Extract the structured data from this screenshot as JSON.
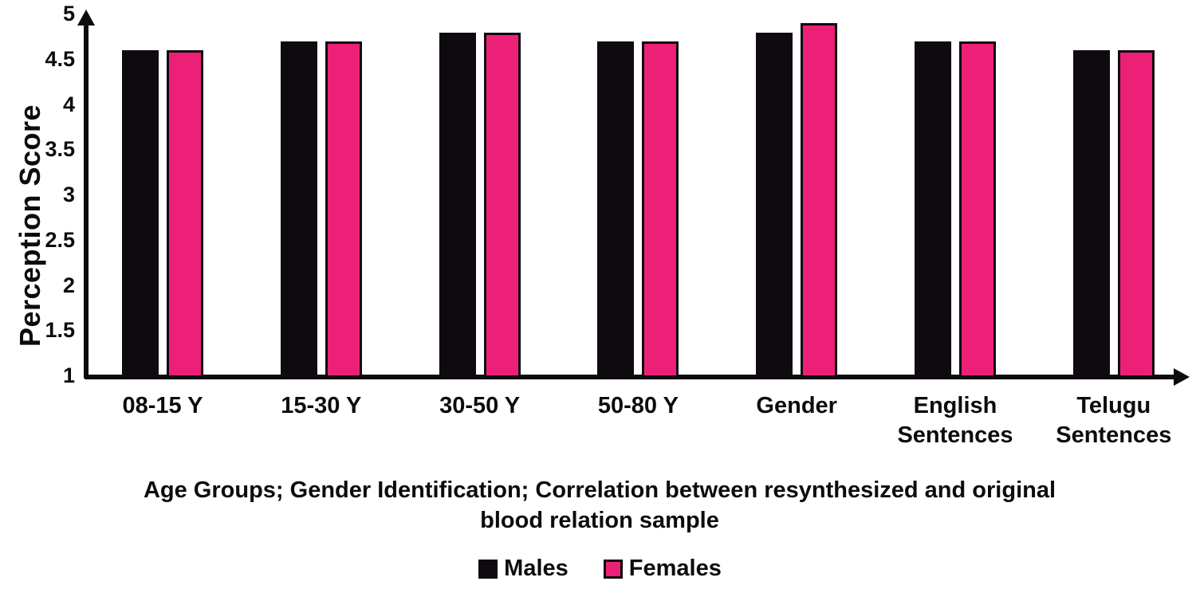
{
  "figure": {
    "y_axis_label": "Perception Score",
    "x_axis_title": "Age Groups; Gender Identification; Correlation between resynthesized and original blood relation sample",
    "legend_labels": [
      "Males",
      "Females"
    ],
    "colors": {
      "males": "#0e0a0f",
      "females": "#ed2077",
      "axis": "#0e0a0f",
      "background": "#ffffff"
    }
  },
  "chart_data": {
    "type": "bar",
    "categories": [
      "08-15 Y",
      "15-30 Y",
      "30-50 Y",
      "50-80 Y",
      "Gender",
      "English Sentences",
      "Telugu Sentences"
    ],
    "series": [
      {
        "name": "Males",
        "color": "#0e0a0f",
        "values": [
          4.6,
          4.7,
          4.8,
          4.7,
          4.8,
          4.7,
          4.6
        ]
      },
      {
        "name": "Females",
        "color": "#ed2077",
        "values": [
          4.6,
          4.7,
          4.8,
          4.7,
          4.9,
          4.7,
          4.6
        ]
      }
    ],
    "title": "",
    "xlabel": "Age Groups; Gender Identification; Correlation between resynthesized and original blood relation sample",
    "ylabel": "Perception Score",
    "ylim": [
      1,
      5
    ],
    "yticks": [
      5,
      4.5,
      4,
      3.5,
      3,
      2.5,
      2,
      1.5,
      1
    ],
    "grid": false,
    "legend_position": "bottom"
  }
}
